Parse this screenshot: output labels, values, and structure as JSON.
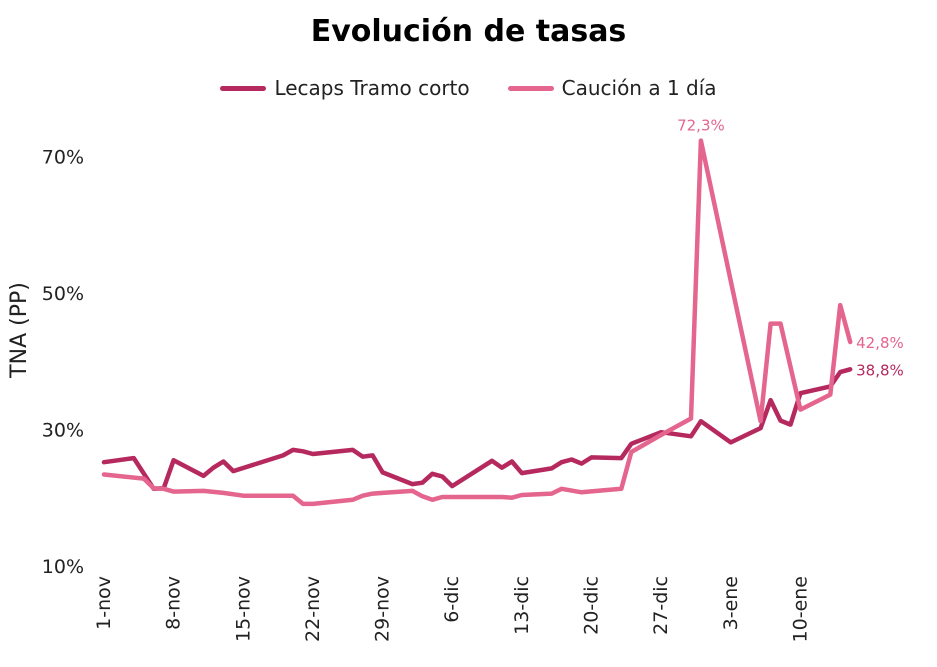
{
  "chart_data": {
    "type": "line",
    "title": "Evolución de tasas",
    "ylabel": "TNA (PP)",
    "ylim": [
      10,
      80
    ],
    "yticks": [
      10,
      30,
      50,
      70
    ],
    "ytick_labels": [
      "10%",
      "30%",
      "50%",
      "70%"
    ],
    "xlim": [
      "2024-11-01",
      "2025-01-18"
    ],
    "xticks": [
      "2024-11-01",
      "2024-11-08",
      "2024-11-15",
      "2024-11-22",
      "2024-11-29",
      "2024-12-06",
      "2024-12-13",
      "2024-12-20",
      "2024-12-27",
      "2025-01-03",
      "2025-01-10"
    ],
    "xtick_labels": [
      "1-nov",
      "8-nov",
      "15-nov",
      "22-nov",
      "29-nov",
      "6-dic",
      "13-dic",
      "20-dic",
      "27-dic",
      "3-ene",
      "10-ene"
    ],
    "legend_position": "top-center",
    "grid": false,
    "series": [
      {
        "name": "Lecaps Tramo corto",
        "color": "#B5295F",
        "end_label": "38,8%",
        "points": [
          [
            "2024-11-01",
            25.2
          ],
          [
            "2024-11-04",
            25.8
          ],
          [
            "2024-11-06",
            21.3
          ],
          [
            "2024-11-07",
            21.4
          ],
          [
            "2024-11-08",
            25.5
          ],
          [
            "2024-11-11",
            23.2
          ],
          [
            "2024-11-12",
            24.4
          ],
          [
            "2024-11-13",
            25.3
          ],
          [
            "2024-11-14",
            23.9
          ],
          [
            "2024-11-19",
            26.2
          ],
          [
            "2024-11-20",
            27.0
          ],
          [
            "2024-11-21",
            26.8
          ],
          [
            "2024-11-22",
            26.4
          ],
          [
            "2024-11-26",
            27.0
          ],
          [
            "2024-11-27",
            26.0
          ],
          [
            "2024-11-28",
            26.2
          ],
          [
            "2024-11-29",
            23.7
          ],
          [
            "2024-12-02",
            22.0
          ],
          [
            "2024-12-03",
            22.2
          ],
          [
            "2024-12-04",
            23.5
          ],
          [
            "2024-12-05",
            23.1
          ],
          [
            "2024-12-06",
            21.7
          ],
          [
            "2024-12-10",
            25.4
          ],
          [
            "2024-12-11",
            24.4
          ],
          [
            "2024-12-12",
            25.3
          ],
          [
            "2024-12-13",
            23.6
          ],
          [
            "2024-12-16",
            24.3
          ],
          [
            "2024-12-17",
            25.2
          ],
          [
            "2024-12-18",
            25.6
          ],
          [
            "2024-12-19",
            25.0
          ],
          [
            "2024-12-20",
            25.9
          ],
          [
            "2024-12-23",
            25.8
          ],
          [
            "2024-12-24",
            27.9
          ],
          [
            "2024-12-27",
            29.6
          ],
          [
            "2024-12-30",
            29.0
          ],
          [
            "2024-12-31",
            31.2
          ],
          [
            "2025-01-03",
            28.1
          ],
          [
            "2025-01-06",
            30.2
          ],
          [
            "2025-01-07",
            34.3
          ],
          [
            "2025-01-08",
            31.3
          ],
          [
            "2025-01-09",
            30.7
          ],
          [
            "2025-01-10",
            35.3
          ],
          [
            "2025-01-13",
            36.3
          ],
          [
            "2025-01-14",
            38.4
          ],
          [
            "2025-01-15",
            38.8
          ]
        ]
      },
      {
        "name": "Caución a 1 día",
        "color": "#E4658E",
        "end_label": "42,8%",
        "peak_label": "72,3%",
        "points": [
          [
            "2024-11-01",
            23.4
          ],
          [
            "2024-11-05",
            22.8
          ],
          [
            "2024-11-06",
            21.4
          ],
          [
            "2024-11-07",
            21.3
          ],
          [
            "2024-11-08",
            20.9
          ],
          [
            "2024-11-11",
            21.0
          ],
          [
            "2024-11-13",
            20.7
          ],
          [
            "2024-11-15",
            20.3
          ],
          [
            "2024-11-20",
            20.3
          ],
          [
            "2024-11-21",
            19.1
          ],
          [
            "2024-11-22",
            19.1
          ],
          [
            "2024-11-26",
            19.7
          ],
          [
            "2024-11-27",
            20.3
          ],
          [
            "2024-11-28",
            20.6
          ],
          [
            "2024-11-29",
            20.7
          ],
          [
            "2024-12-02",
            21.0
          ],
          [
            "2024-12-03",
            20.2
          ],
          [
            "2024-12-04",
            19.7
          ],
          [
            "2024-12-05",
            20.1
          ],
          [
            "2024-12-11",
            20.1
          ],
          [
            "2024-12-12",
            20.0
          ],
          [
            "2024-12-13",
            20.4
          ],
          [
            "2024-12-16",
            20.6
          ],
          [
            "2024-12-17",
            21.3
          ],
          [
            "2024-12-19",
            20.8
          ],
          [
            "2024-12-23",
            21.3
          ],
          [
            "2024-12-24",
            26.7
          ],
          [
            "2024-12-27",
            29.2
          ],
          [
            "2024-12-30",
            31.6
          ],
          [
            "2024-12-31",
            72.3
          ],
          [
            "2025-01-06",
            31.2
          ],
          [
            "2025-01-07",
            45.5
          ],
          [
            "2025-01-08",
            45.5
          ],
          [
            "2025-01-10",
            32.9
          ],
          [
            "2025-01-13",
            35.1
          ],
          [
            "2025-01-14",
            48.2
          ],
          [
            "2025-01-15",
            42.8
          ]
        ]
      }
    ]
  }
}
